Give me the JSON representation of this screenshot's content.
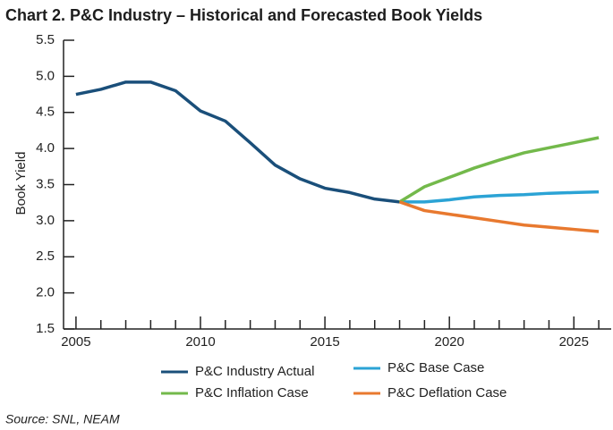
{
  "chart_data": {
    "type": "line",
    "title": "Chart 2. P&C Industry – Historical and Forecasted Book Yields",
    "y_label": "Book Yield",
    "source": "Source:  SNL, NEAM",
    "x": [
      2005,
      2006,
      2007,
      2008,
      2009,
      2010,
      2011,
      2012,
      2013,
      2014,
      2015,
      2016,
      2017,
      2018,
      2019,
      2020,
      2021,
      2022,
      2023,
      2024,
      2025,
      2026
    ],
    "series": [
      {
        "name": "P&C Industry Actual",
        "color": "#1a4f7a",
        "values": [
          4.75,
          4.82,
          4.92,
          4.92,
          4.8,
          4.52,
          4.38,
          4.08,
          3.77,
          3.58,
          3.45,
          3.39,
          3.3,
          3.26,
          null,
          null,
          null,
          null,
          null,
          null,
          null,
          null
        ]
      },
      {
        "name": "P&C Base Case",
        "color": "#2ba3d5",
        "values": [
          null,
          null,
          null,
          null,
          null,
          null,
          null,
          null,
          null,
          null,
          null,
          null,
          null,
          3.26,
          3.26,
          3.29,
          3.33,
          3.35,
          3.36,
          3.38,
          3.39,
          3.4
        ]
      },
      {
        "name": "P&C Inflation Case",
        "color": "#73b94b",
        "values": [
          null,
          null,
          null,
          null,
          null,
          null,
          null,
          null,
          null,
          null,
          null,
          null,
          null,
          3.26,
          3.47,
          3.6,
          3.73,
          3.84,
          3.94,
          4.01,
          4.08,
          4.15
        ]
      },
      {
        "name": "P&C Deflation Case",
        "color": "#e8792f",
        "values": [
          null,
          null,
          null,
          null,
          null,
          null,
          null,
          null,
          null,
          null,
          null,
          null,
          null,
          3.26,
          3.14,
          3.09,
          3.04,
          2.99,
          2.94,
          2.91,
          2.88,
          2.85
        ]
      }
    ],
    "xlim": [
      2004.5,
      2026.5
    ],
    "xticks": [
      2005,
      2010,
      2015,
      2020,
      2025
    ],
    "xminorticks": [
      2006,
      2007,
      2008,
      2009,
      2011,
      2012,
      2013,
      2014,
      2016,
      2017,
      2018,
      2019,
      2021,
      2022,
      2023,
      2024,
      2026
    ],
    "ylim": [
      1.5,
      5.5
    ],
    "yticks": [
      1.5,
      {
        "value": 2,
        "label": "2.0"
      },
      2.5,
      {
        "value": 3,
        "label": "3.0"
      },
      3.5,
      {
        "value": 4,
        "label": "4.0"
      },
      4.5,
      {
        "value": 5,
        "label": "5.0"
      },
      5.5
    ],
    "grid": false
  }
}
